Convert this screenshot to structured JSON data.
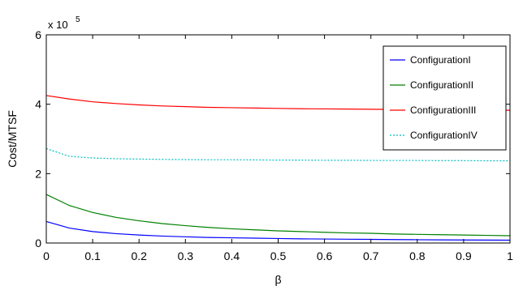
{
  "chart_data": {
    "type": "line",
    "xlabel": "β",
    "ylabel": "Cost/MTSF",
    "y_multiplier": {
      "base": "x 10",
      "exponent": "5"
    },
    "xlim": [
      0,
      1
    ],
    "ylim": [
      0,
      6
    ],
    "x_ticks": [
      "0",
      "0.1",
      "0.2",
      "0.3",
      "0.4",
      "0.5",
      "0.6",
      "0.7",
      "0.8",
      "0.9",
      "1"
    ],
    "y_ticks": [
      "0",
      "2",
      "4",
      "6"
    ],
    "grid": false,
    "legend_position": "top-right",
    "x": [
      0,
      0.05,
      0.1,
      0.15,
      0.2,
      0.25,
      0.3,
      0.35,
      0.4,
      0.45,
      0.5,
      0.55,
      0.6,
      0.65,
      0.7,
      0.75,
      0.8,
      0.85,
      0.9,
      0.95,
      1
    ],
    "series": [
      {
        "name": "ConfigurationI",
        "color": "#0000ff",
        "dash": "solid",
        "values": [
          0.62,
          0.43,
          0.33,
          0.27,
          0.23,
          0.2,
          0.18,
          0.16,
          0.15,
          0.14,
          0.13,
          0.12,
          0.115,
          0.11,
          0.105,
          0.1,
          0.095,
          0.09,
          0.088,
          0.085,
          0.082
        ]
      },
      {
        "name": "ConfigurationII",
        "color": "#008000",
        "dash": "solid",
        "values": [
          1.4,
          1.08,
          0.88,
          0.74,
          0.64,
          0.56,
          0.5,
          0.45,
          0.41,
          0.38,
          0.35,
          0.33,
          0.31,
          0.29,
          0.28,
          0.26,
          0.25,
          0.24,
          0.23,
          0.22,
          0.21
        ]
      },
      {
        "name": "ConfigurationIII",
        "color": "#ff0000",
        "dash": "solid",
        "values": [
          4.25,
          4.15,
          4.07,
          4.02,
          3.98,
          3.95,
          3.93,
          3.91,
          3.9,
          3.89,
          3.88,
          3.87,
          3.865,
          3.86,
          3.855,
          3.85,
          3.845,
          3.84,
          3.835,
          3.83,
          3.825
        ]
      },
      {
        "name": "ConfigurationIV",
        "color": "#00bfbf",
        "dash": "dotted",
        "values": [
          2.72,
          2.5,
          2.45,
          2.43,
          2.42,
          2.41,
          2.405,
          2.4,
          2.4,
          2.395,
          2.39,
          2.39,
          2.385,
          2.385,
          2.38,
          2.38,
          2.38,
          2.375,
          2.375,
          2.37,
          2.37
        ]
      }
    ]
  }
}
